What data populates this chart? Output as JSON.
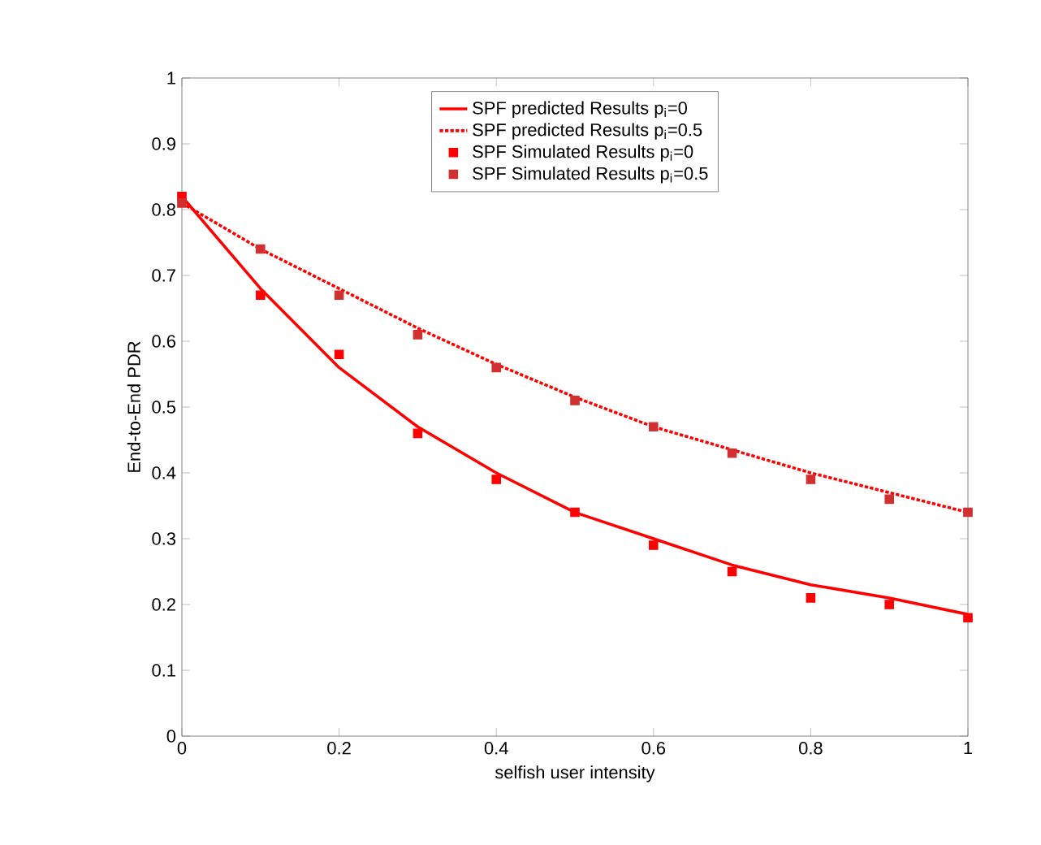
{
  "chart_data": {
    "type": "line",
    "xlabel": "selfish user intensity",
    "ylabel": "End-to-End PDR",
    "x": [
      0,
      0.1,
      0.2,
      0.3,
      0.4,
      0.5,
      0.6,
      0.7,
      0.8,
      0.9,
      1
    ],
    "xlim": [
      0,
      1
    ],
    "ylim": [
      0,
      1
    ],
    "xticks": [
      0,
      0.2,
      0.4,
      0.6,
      0.8,
      1
    ],
    "yticks": [
      0,
      0.1,
      0.2,
      0.3,
      0.4,
      0.5,
      0.6,
      0.7,
      0.8,
      0.9,
      1
    ],
    "grid": false,
    "legend": "top",
    "series": [
      {
        "name": "SPF predicted Results  p$_{i}$=0",
        "color": "#ff0000",
        "line_style": "solid",
        "marker": "none",
        "values": [
          0.82,
          0.68,
          0.56,
          0.47,
          0.4,
          0.34,
          0.3,
          0.26,
          0.23,
          0.21,
          0.185
        ]
      },
      {
        "name": "SPF predicted Results p$_{i}$=0.5",
        "color": "#ff0000",
        "line_style": "dotted",
        "marker": "none",
        "values": [
          0.81,
          0.74,
          0.68,
          0.62,
          0.565,
          0.515,
          0.47,
          0.435,
          0.4,
          0.37,
          0.34
        ]
      },
      {
        "name": "SPF Simulated Results p$_{i}$=0",
        "type": "scatter",
        "color": "#ff0000",
        "marker": "square",
        "values": [
          0.82,
          0.67,
          0.58,
          0.46,
          0.39,
          0.34,
          0.29,
          0.25,
          0.21,
          0.2,
          0.18
        ]
      },
      {
        "name": "SPF Simulated Results p$_{i}$=0.5",
        "type": "scatter",
        "color": "#d03030",
        "marker": "square",
        "values": [
          0.81,
          0.74,
          0.67,
          0.61,
          0.56,
          0.51,
          0.47,
          0.43,
          0.39,
          0.36,
          0.34
        ]
      }
    ]
  }
}
